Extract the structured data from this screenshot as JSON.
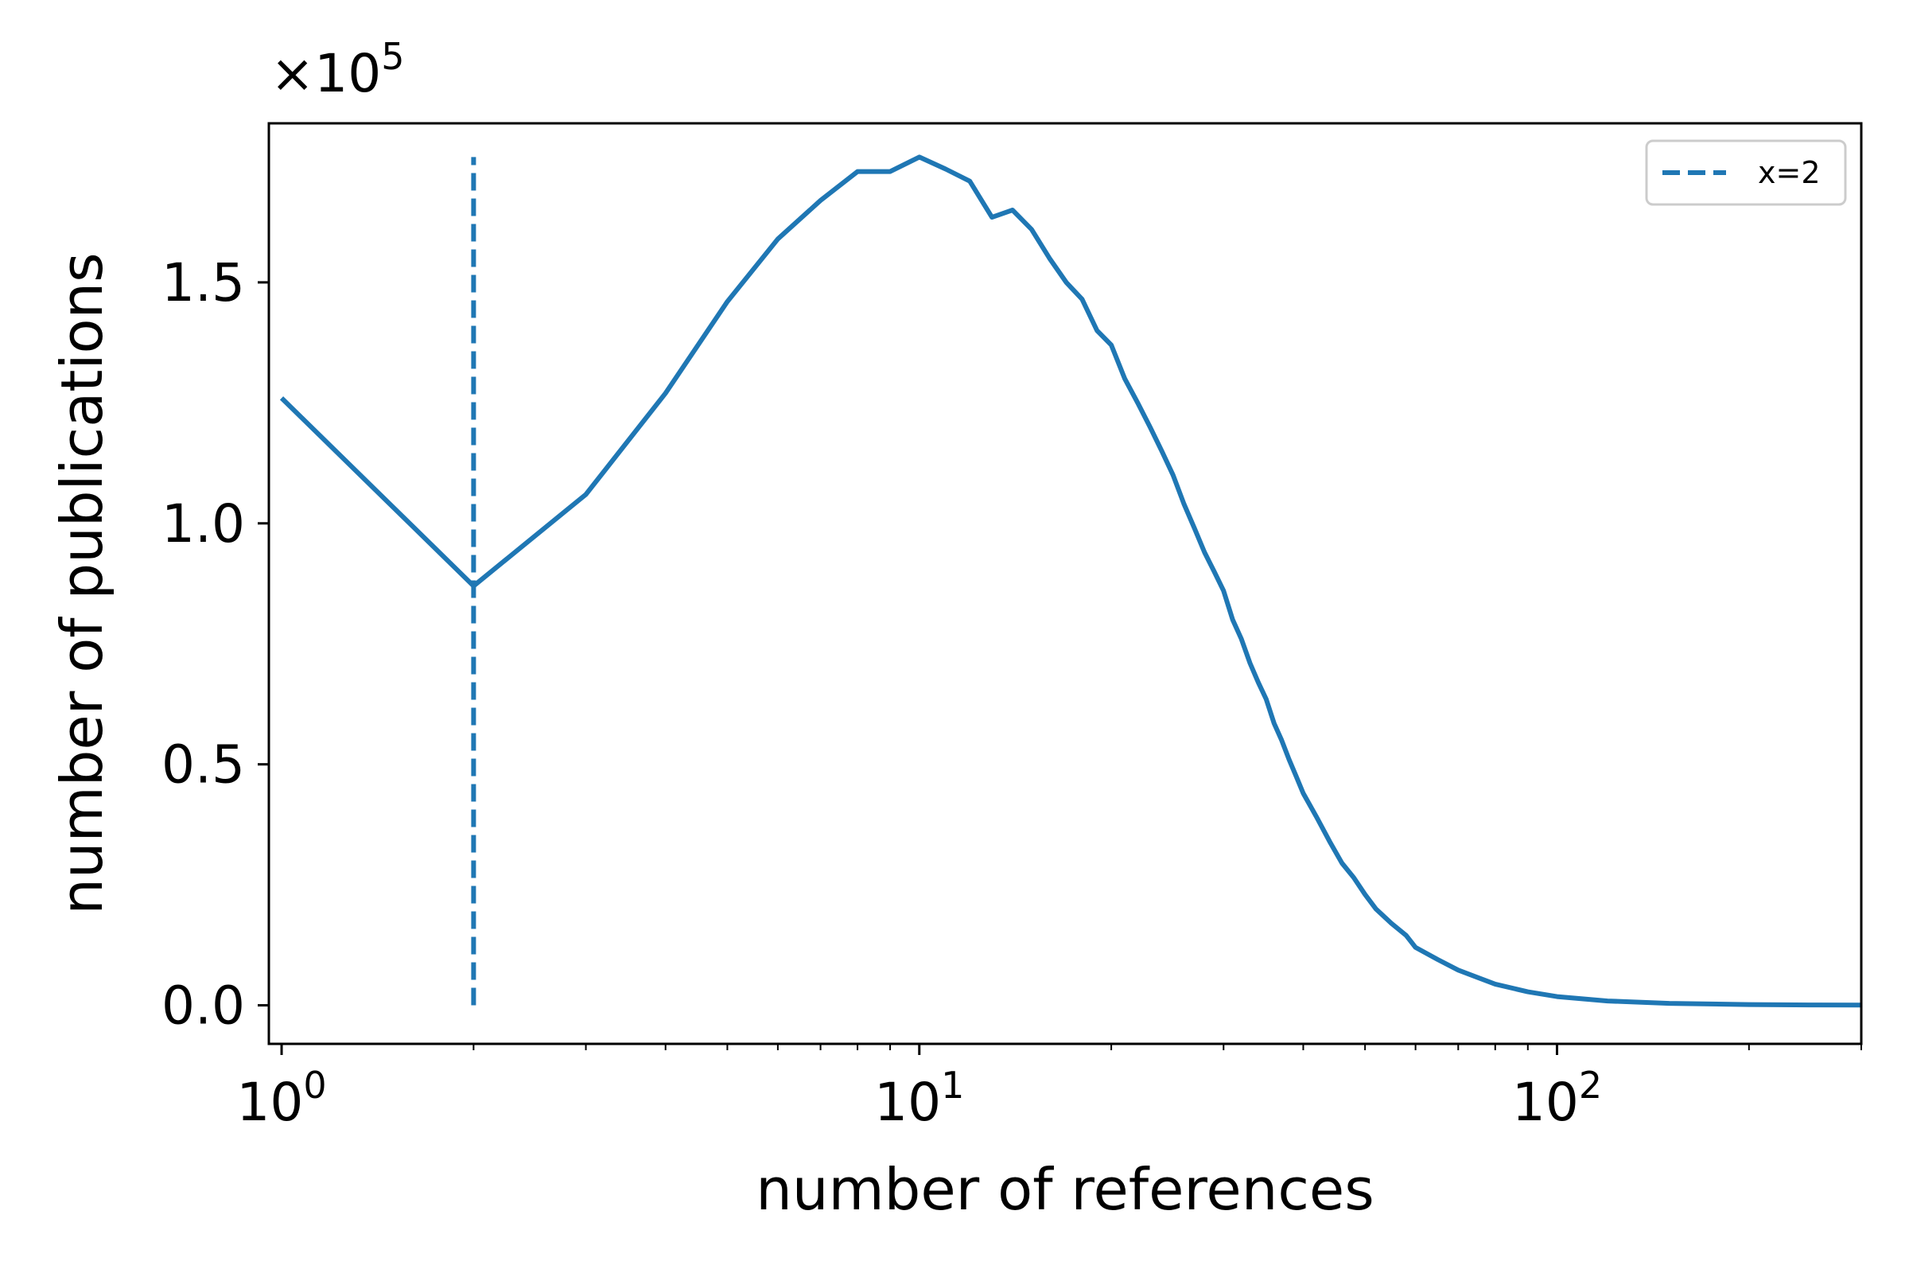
{
  "chart_data": {
    "type": "line",
    "xlabel": "number of references",
    "ylabel": "number of publications",
    "xscale": "log",
    "xlim": [
      0.955,
      300
    ],
    "ylim": [
      -8000,
      183000
    ],
    "y_multiplier_label": "×10",
    "y_multiplier_exponent": "5",
    "x_ticks": [
      {
        "value": 1,
        "base": "10",
        "exp": "0"
      },
      {
        "value": 10,
        "base": "10",
        "exp": "1"
      },
      {
        "value": 100,
        "base": "10",
        "exp": "2"
      }
    ],
    "y_ticks": [
      {
        "value": 0,
        "label": "0.0"
      },
      {
        "value": 50000,
        "label": "0.5"
      },
      {
        "value": 100000,
        "label": "1.0"
      },
      {
        "value": 150000,
        "label": "1.5"
      }
    ],
    "grid": false,
    "legend_position": "top-right",
    "series": [
      {
        "color": "#1f77b4",
        "style": "solid",
        "x": [
          1,
          2,
          3,
          4,
          5,
          6,
          7,
          8,
          9,
          10,
          11,
          12,
          13,
          14,
          15,
          16,
          17,
          18,
          19,
          20,
          21,
          22,
          23,
          24,
          25,
          26,
          27,
          28,
          29,
          30,
          31,
          32,
          33,
          34,
          35,
          36,
          37,
          38,
          39,
          40,
          42,
          44,
          46,
          48,
          50,
          52,
          55,
          58,
          60,
          65,
          70,
          75,
          80,
          90,
          100,
          120,
          150,
          200,
          250,
          300
        ],
        "y": [
          126000,
          87000,
          106000,
          127000,
          146000,
          159000,
          167000,
          173000,
          173000,
          176000,
          173500,
          171000,
          163500,
          165000,
          161000,
          155000,
          150000,
          146500,
          140000,
          137000,
          130000,
          125000,
          120000,
          115000,
          110000,
          104000,
          99000,
          94000,
          90000,
          86000,
          80000,
          76000,
          71000,
          67000,
          63500,
          58500,
          55000,
          51000,
          47500,
          44000,
          39000,
          34000,
          29500,
          26500,
          23000,
          20000,
          17000,
          14500,
          12000,
          9500,
          7300,
          5800,
          4400,
          2800,
          1800,
          900,
          400,
          150,
          80,
          40
        ]
      },
      {
        "name": "x=2",
        "color": "#1f77b4",
        "style": "dashed",
        "x": [
          2,
          2
        ],
        "y": [
          0,
          176000
        ]
      }
    ]
  }
}
